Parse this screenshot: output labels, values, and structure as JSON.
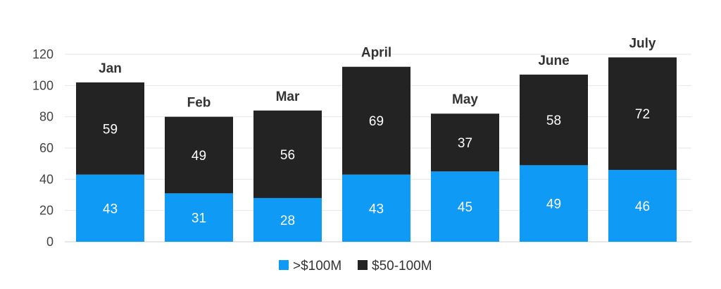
{
  "chart_data": {
    "type": "bar",
    "stacked": true,
    "categories": [
      "Jan",
      "Feb",
      "Mar",
      "April",
      "May",
      "June",
      "July"
    ],
    "series": [
      {
        "name": ">$100M",
        "color": "#0f9af5",
        "values": [
          43,
          31,
          28,
          43,
          45,
          49,
          46
        ]
      },
      {
        "name": "$50-100M",
        "color": "#232323",
        "values": [
          59,
          49,
          56,
          69,
          37,
          58,
          72
        ]
      }
    ],
    "yticks": [
      0,
      20,
      40,
      60,
      80,
      100,
      120
    ],
    "ylim": [
      0,
      120
    ],
    "grid": true,
    "legend_position": "bottom-center",
    "category_label_position": "above-bar",
    "data_labels": true
  }
}
